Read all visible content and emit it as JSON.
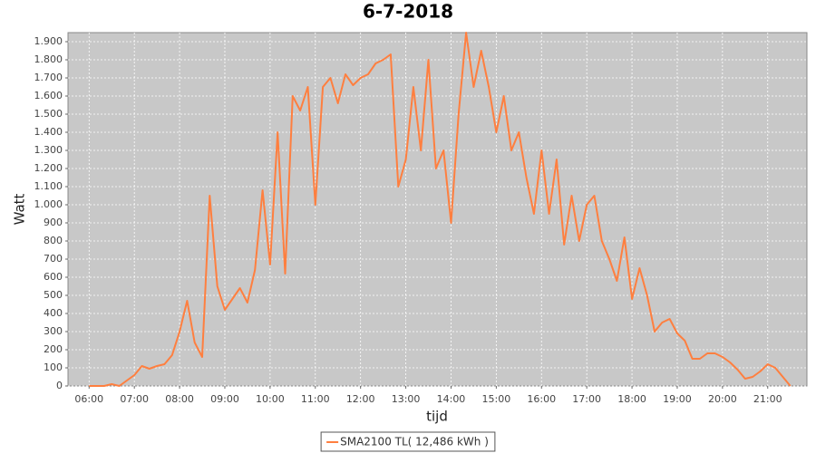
{
  "chart_data": {
    "type": "line",
    "title": "6-7-2018",
    "x_label": "tijd",
    "y_label": "Watt",
    "x": [
      "06:00",
      "06:10",
      "06:20",
      "06:30",
      "06:40",
      "06:50",
      "07:00",
      "07:10",
      "07:20",
      "07:30",
      "07:40",
      "07:50",
      "08:00",
      "08:10",
      "08:20",
      "08:30",
      "08:40",
      "08:50",
      "09:00",
      "09:10",
      "09:20",
      "09:30",
      "09:40",
      "09:50",
      "10:00",
      "10:10",
      "10:20",
      "10:30",
      "10:40",
      "10:50",
      "11:00",
      "11:10",
      "11:20",
      "11:30",
      "11:40",
      "11:50",
      "12:00",
      "12:10",
      "12:20",
      "12:30",
      "12:40",
      "12:50",
      "13:00",
      "13:10",
      "13:20",
      "13:30",
      "13:40",
      "13:50",
      "14:00",
      "14:10",
      "14:20",
      "14:30",
      "14:40",
      "14:50",
      "15:00",
      "15:10",
      "15:20",
      "15:30",
      "15:40",
      "15:50",
      "16:00",
      "16:10",
      "16:20",
      "16:30",
      "16:40",
      "16:50",
      "17:00",
      "17:10",
      "17:20",
      "17:30",
      "17:40",
      "17:50",
      "18:00",
      "18:10",
      "18:20",
      "18:30",
      "18:40",
      "18:50",
      "19:00",
      "19:10",
      "19:20",
      "19:30",
      "19:40",
      "19:50",
      "20:00",
      "20:10",
      "20:20",
      "20:30",
      "20:40",
      "20:50",
      "21:00",
      "21:10",
      "21:20",
      "21:30"
    ],
    "series": [
      {
        "name": "SMA2100 TL( 12,486 kWh )",
        "color": "#ff7f3f",
        "values": [
          0,
          0,
          0,
          10,
          0,
          30,
          60,
          110,
          95,
          110,
          120,
          170,
          300,
          470,
          240,
          160,
          1050,
          550,
          420,
          480,
          540,
          460,
          640,
          1080,
          670,
          1400,
          620,
          1600,
          1520,
          1650,
          1000,
          1650,
          1700,
          1560,
          1720,
          1660,
          1700,
          1720,
          1780,
          1800,
          1830,
          1100,
          1250,
          1650,
          1300,
          1800,
          1200,
          1300,
          900,
          1500,
          1950,
          1650,
          1850,
          1650,
          1400,
          1600,
          1300,
          1400,
          1150,
          950,
          1300,
          950,
          1250,
          780,
          1050,
          800,
          1000,
          1050,
          800,
          700,
          580,
          820,
          480,
          650,
          500,
          300,
          350,
          370,
          290,
          250,
          150,
          150,
          180,
          180,
          160,
          130,
          90,
          40,
          50,
          80,
          120,
          100,
          50,
          0
        ]
      }
    ],
    "xlim": [
      "05:32",
      "21:52"
    ],
    "xticks": [
      "06:00",
      "07:00",
      "08:00",
      "09:00",
      "10:00",
      "11:00",
      "12:00",
      "13:00",
      "14:00",
      "15:00",
      "16:00",
      "17:00",
      "18:00",
      "19:00",
      "20:00",
      "21:00"
    ],
    "ylim": [
      0,
      1950
    ],
    "yticks": [
      0,
      100,
      200,
      300,
      400,
      500,
      600,
      700,
      800,
      900,
      {
        "value": 1000,
        "label": "1.000"
      },
      {
        "value": 1100,
        "label": "1.100"
      },
      {
        "value": 1200,
        "label": "1.200"
      },
      {
        "value": 1300,
        "label": "1.300"
      },
      {
        "value": 1400,
        "label": "1.400"
      },
      {
        "value": 1500,
        "label": "1.500"
      },
      {
        "value": 1600,
        "label": "1.600"
      },
      {
        "value": 1700,
        "label": "1.700"
      },
      {
        "value": 1800,
        "label": "1.800"
      },
      {
        "value": 1900,
        "label": "1.900"
      }
    ],
    "grid": true,
    "legend": "bottom"
  }
}
